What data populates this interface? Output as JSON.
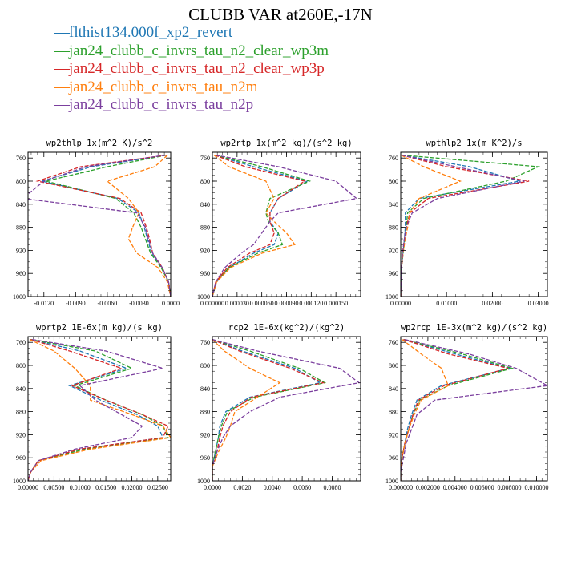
{
  "title": "CLUBB VAR at260E,-17N",
  "legend": [
    {
      "label": "flthist134.000f_xp2_revert",
      "color": "#1f77b4"
    },
    {
      "label": "jan24_clubb_c_invrs_tau_n2_clear_wp3m",
      "color": "#2ca02c"
    },
    {
      "label": "jan24_clubb_c_invrs_tau_n2_clear_wp3p",
      "color": "#d62728"
    },
    {
      "label": "jan24_clubb_c_invrs_tau_n2m",
      "color": "#ff7f0e"
    },
    {
      "label": "jan24_clubb_c_invrs_tau_n2p",
      "color": "#7b3f9e"
    }
  ],
  "chart_data": [
    {
      "type": "line",
      "title": "wp2thlp  1x(m^2 K)/s^2",
      "xlim": [
        -0.0135,
        0.0
      ],
      "ylim": [
        1000,
        750
      ],
      "xticks": [
        -0.012,
        -0.009,
        -0.006,
        -0.003,
        0.0
      ],
      "xtick_labels": [
        "-0.0120",
        "-0.0090",
        "-0.0060",
        "-0.0030",
        "0.0000"
      ],
      "yticks": [
        760,
        800,
        840,
        880,
        920,
        960,
        1000
      ],
      "y": [
        755,
        775,
        800,
        830,
        855,
        880,
        900,
        925,
        950,
        975,
        1000
      ],
      "series": [
        {
          "name": "flthist134.000f_xp2_revert",
          "values": [
            -0.0004,
            -0.0075,
            -0.0122,
            -0.005,
            -0.003,
            -0.0025,
            -0.0022,
            -0.0018,
            -0.0008,
            -0.0002,
            0.0
          ]
        },
        {
          "name": "jan24_clubb_c_invrs_tau_n2_clear_wp3m",
          "values": [
            -0.0004,
            -0.006,
            -0.0118,
            -0.0052,
            -0.0035,
            -0.0028,
            -0.0024,
            -0.0019,
            -0.0009,
            -0.0002,
            0.0
          ]
        },
        {
          "name": "jan24_clubb_c_invrs_tau_n2_clear_wp3p",
          "values": [
            -0.0004,
            -0.0085,
            -0.0126,
            -0.0048,
            -0.0028,
            -0.0023,
            -0.002,
            -0.0017,
            -0.0008,
            -0.0002,
            0.0
          ]
        },
        {
          "name": "jan24_clubb_c_invrs_tau_n2m",
          "values": [
            -0.0003,
            -0.0015,
            -0.006,
            -0.004,
            -0.003,
            -0.0036,
            -0.004,
            -0.0032,
            -0.0012,
            -0.0003,
            0.0
          ]
        },
        {
          "name": "jan24_clubb_c_invrs_tau_n2p",
          "values": [
            -0.0005,
            -0.008,
            -0.012,
            -0.014,
            -0.0032,
            -0.0024,
            -0.0021,
            -0.0017,
            -0.0008,
            -0.0002,
            0.0
          ]
        }
      ]
    },
    {
      "type": "line",
      "title": "wp2rtp  1x(m^2 kg)/(s^2 kg)",
      "xlim": [
        0.0,
        0.00018
      ],
      "ylim": [
        1000,
        750
      ],
      "xticks": [
        0.0,
        3e-05,
        6e-05,
        9e-05,
        0.00012,
        0.00015
      ],
      "xtick_labels": [
        "0.000000",
        "0.000030",
        "0.000060",
        "0.000090",
        "0.000120",
        "0.000150"
      ],
      "yticks": [
        760,
        800,
        840,
        880,
        920,
        960,
        1000
      ],
      "y": [
        755,
        775,
        800,
        830,
        855,
        870,
        890,
        910,
        925,
        950,
        975,
        1000
      ],
      "series": [
        {
          "name": "flthist134.000f_xp2_revert",
          "values": [
            3e-06,
            5e-05,
            0.000115,
            8e-05,
            7e-05,
            7e-05,
            8e-05,
            7.5e-05,
            5e-05,
            2e-05,
            5e-06,
            0.0
          ]
        },
        {
          "name": "jan24_clubb_c_invrs_tau_n2_clear_wp3m",
          "values": [
            3e-06,
            6e-05,
            0.000118,
            7e-05,
            6.5e-05,
            6.8e-05,
            8e-05,
            8.5e-05,
            5.5e-05,
            2e-05,
            5e-06,
            0.0
          ]
        },
        {
          "name": "jan24_clubb_c_invrs_tau_n2_clear_wp3p",
          "values": [
            3e-06,
            4e-05,
            0.000112,
            8e-05,
            7e-05,
            7e-05,
            7.5e-05,
            7e-05,
            4.5e-05,
            1.8e-05,
            4e-06,
            0.0
          ]
        },
        {
          "name": "jan24_clubb_c_invrs_tau_n2m",
          "values": [
            2e-06,
            2e-05,
            6.5e-05,
            7.5e-05,
            6.5e-05,
            7.5e-05,
            9e-05,
            0.0001,
            6e-05,
            2.2e-05,
            5e-06,
            0.0
          ]
        },
        {
          "name": "jan24_clubb_c_invrs_tau_n2p",
          "values": [
            4e-06,
            8e-05,
            0.00015,
            0.000175,
            8e-05,
            7e-05,
            6e-05,
            5e-05,
            3.5e-05,
            1.5e-05,
            4e-06,
            0.0
          ]
        }
      ]
    },
    {
      "type": "line",
      "title": "wpthlp2  1x(m K^2)/s",
      "xlim": [
        0.0,
        0.032
      ],
      "ylim": [
        1000,
        750
      ],
      "xticks": [
        0.0,
        0.01,
        0.02,
        0.03
      ],
      "xtick_labels": [
        "0.00000",
        "0.01000",
        "0.02000",
        "0.03000"
      ],
      "yticks": [
        760,
        800,
        840,
        880,
        920,
        960,
        1000
      ],
      "y": [
        755,
        775,
        800,
        830,
        855,
        880,
        900,
        925,
        950,
        975,
        1000
      ],
      "series": [
        {
          "name": "flthist134.000f_xp2_revert",
          "values": [
            0.0002,
            0.015,
            0.026,
            0.004,
            0.001,
            0.001,
            0.0008,
            0.0005,
            0.0002,
            0.0001,
            0.0
          ]
        },
        {
          "name": "jan24_clubb_c_invrs_tau_n2_clear_wp3m",
          "values": [
            0.0003,
            0.03,
            0.023,
            0.005,
            0.0015,
            0.0012,
            0.0009,
            0.0005,
            0.0002,
            0.0001,
            0.0
          ]
        },
        {
          "name": "jan24_clubb_c_invrs_tau_n2_clear_wp3p",
          "values": [
            0.0002,
            0.01,
            0.028,
            0.006,
            0.002,
            0.0012,
            0.0008,
            0.0004,
            0.0002,
            0.0001,
            0.0
          ]
        },
        {
          "name": "jan24_clubb_c_invrs_tau_n2m",
          "values": [
            0.0001,
            0.005,
            0.013,
            0.004,
            0.002,
            0.0015,
            0.001,
            0.0005,
            0.0002,
            0.0001,
            0.0
          ]
        },
        {
          "name": "jan24_clubb_c_invrs_tau_n2p",
          "values": [
            0.0002,
            0.012,
            0.027,
            0.008,
            0.0025,
            0.0012,
            0.0008,
            0.0004,
            0.0002,
            0.0001,
            0.0
          ]
        }
      ]
    },
    {
      "type": "line",
      "title": "wprtp2  1E-6x(m kg)/(s kg)",
      "xlim": [
        0.0,
        0.0275
      ],
      "ylim": [
        1000,
        750
      ],
      "xticks": [
        0.0,
        0.005,
        0.01,
        0.015,
        0.02,
        0.025
      ],
      "xtick_labels": [
        "0.00000",
        "0.00500",
        "0.01000",
        "0.01500",
        "0.02000",
        "0.02500"
      ],
      "yticks": [
        760,
        800,
        840,
        880,
        920,
        960,
        1000
      ],
      "y": [
        755,
        775,
        805,
        835,
        860,
        885,
        905,
        925,
        945,
        965,
        985,
        1000
      ],
      "series": [
        {
          "name": "flthist134.000f_xp2_revert",
          "values": [
            0.0005,
            0.01,
            0.019,
            0.008,
            0.014,
            0.021,
            0.025,
            0.026,
            0.01,
            0.002,
            0.0005,
            0.0
          ]
        },
        {
          "name": "jan24_clubb_c_invrs_tau_n2_clear_wp3m",
          "values": [
            0.0005,
            0.013,
            0.02,
            0.009,
            0.015,
            0.022,
            0.026,
            0.027,
            0.011,
            0.002,
            0.0005,
            0.0
          ]
        },
        {
          "name": "jan24_clubb_c_invrs_tau_n2_clear_wp3p",
          "values": [
            0.0005,
            0.008,
            0.018,
            0.0085,
            0.015,
            0.022,
            0.027,
            0.026,
            0.01,
            0.002,
            0.0005,
            0.0
          ]
        },
        {
          "name": "jan24_clubb_c_invrs_tau_n2m",
          "values": [
            0.0003,
            0.005,
            0.009,
            0.012,
            0.012,
            0.02,
            0.026,
            0.0275,
            0.012,
            0.0025,
            0.0005,
            0.0
          ]
        },
        {
          "name": "jan24_clubb_c_invrs_tau_n2p",
          "values": [
            0.0008,
            0.015,
            0.026,
            0.01,
            0.013,
            0.018,
            0.022,
            0.02,
            0.009,
            0.002,
            0.0005,
            0.0
          ]
        }
      ]
    },
    {
      "type": "line",
      "title": "rcp2  1E-6x(kg^2)/(kg^2)",
      "xlim": [
        0.0,
        0.0099
      ],
      "ylim": [
        1000,
        750
      ],
      "xticks": [
        0.0,
        0.002,
        0.004,
        0.006,
        0.008
      ],
      "xtick_labels": [
        "0.0000",
        "0.0020",
        "0.0040",
        "0.0060",
        "0.0080"
      ],
      "yticks": [
        760,
        800,
        840,
        880,
        920,
        960,
        1000
      ],
      "y": [
        755,
        775,
        805,
        830,
        855,
        880,
        905,
        925,
        950,
        975,
        1000
      ],
      "series": [
        {
          "name": "flthist134.000f_xp2_revert",
          "values": [
            0.0,
            0.002,
            0.0055,
            0.0072,
            0.0025,
            0.0009,
            0.0005,
            0.0004,
            0.0002,
            0.0,
            0.0
          ]
        },
        {
          "name": "jan24_clubb_c_invrs_tau_n2_clear_wp3m",
          "values": [
            0.0,
            0.0025,
            0.0058,
            0.0075,
            0.0028,
            0.001,
            0.0006,
            0.0004,
            0.0002,
            0.0,
            0.0
          ]
        },
        {
          "name": "jan24_clubb_c_invrs_tau_n2_clear_wp3p",
          "values": [
            0.0,
            0.0018,
            0.0052,
            0.0074,
            0.0026,
            0.0012,
            0.0007,
            0.0005,
            0.0003,
            0.0,
            0.0
          ]
        },
        {
          "name": "jan24_clubb_c_invrs_tau_n2m",
          "values": [
            0.0,
            0.0008,
            0.0025,
            0.0045,
            0.003,
            0.0015,
            0.0012,
            0.0009,
            0.0004,
            0.0,
            0.0
          ]
        },
        {
          "name": "jan24_clubb_c_invrs_tau_n2p",
          "values": [
            0.0,
            0.003,
            0.0085,
            0.0098,
            0.0045,
            0.0025,
            0.0012,
            0.0007,
            0.0003,
            0.0,
            0.0
          ]
        }
      ]
    },
    {
      "type": "line",
      "title": "wp2rcp  1E-3x(m^2 kg)/(s^2 kg)",
      "xlim": [
        0.0,
        0.0108
      ],
      "ylim": [
        1000,
        750
      ],
      "xticks": [
        0.0,
        0.002,
        0.004,
        0.006,
        0.008,
        0.01
      ],
      "xtick_labels": [
        "0.000000",
        "0.002000",
        "0.004000",
        "0.006000",
        "0.008000",
        "0.010000"
      ],
      "yticks": [
        760,
        800,
        840,
        880,
        920,
        960,
        1000
      ],
      "y": [
        755,
        780,
        805,
        835,
        860,
        885,
        910,
        935,
        960,
        985,
        1000
      ],
      "series": [
        {
          "name": "flthist134.000f_xp2_revert",
          "values": [
            0.0002,
            0.004,
            0.008,
            0.003,
            0.0012,
            0.0008,
            0.0005,
            0.0003,
            0.0001,
            0.0,
            0.0
          ]
        },
        {
          "name": "jan24_clubb_c_invrs_tau_n2_clear_wp3m",
          "values": [
            0.0002,
            0.0045,
            0.0082,
            0.0035,
            0.0014,
            0.0009,
            0.0006,
            0.0003,
            0.0001,
            0.0,
            0.0
          ]
        },
        {
          "name": "jan24_clubb_c_invrs_tau_n2_clear_wp3p",
          "values": [
            0.0002,
            0.0035,
            0.0079,
            0.0032,
            0.0013,
            0.0009,
            0.0006,
            0.0003,
            0.0001,
            0.0,
            0.0
          ]
        },
        {
          "name": "jan24_clubb_c_invrs_tau_n2m",
          "values": [
            0.0001,
            0.0015,
            0.003,
            0.0035,
            0.0015,
            0.001,
            0.0006,
            0.0003,
            0.0001,
            0.0,
            0.0
          ]
        },
        {
          "name": "jan24_clubb_c_invrs_tau_n2p",
          "values": [
            0.0003,
            0.005,
            0.0085,
            0.0108,
            0.0025,
            0.0012,
            0.0008,
            0.0004,
            0.0002,
            0.0,
            0.0
          ]
        }
      ]
    }
  ]
}
